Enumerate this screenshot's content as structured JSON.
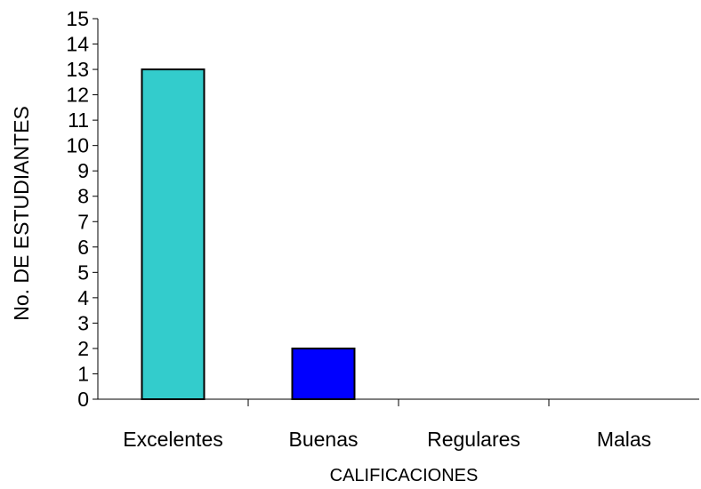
{
  "chart_data": {
    "type": "bar",
    "categories": [
      "Excelentes",
      "Buenas",
      "Regulares",
      "Malas"
    ],
    "values": [
      13,
      2,
      0,
      0
    ],
    "bar_colors": [
      "#33cccc",
      "#0000ff",
      "#33cccc",
      "#33cccc"
    ],
    "xlabel": "CALIFICACIONES",
    "ylabel": "No. DE ESTUDIANTES",
    "ylim": [
      0,
      15
    ],
    "yticks": [
      0,
      1,
      2,
      3,
      4,
      5,
      6,
      7,
      8,
      9,
      10,
      11,
      12,
      13,
      14,
      15
    ],
    "grid": false,
    "legend": "none"
  }
}
